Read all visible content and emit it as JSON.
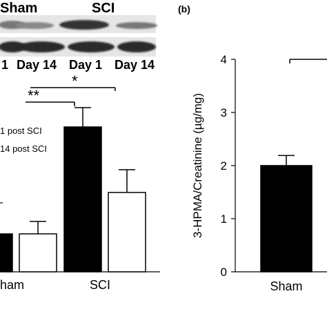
{
  "panel_a": {
    "blot": {
      "group_labels": [
        "Sham",
        "SCI"
      ],
      "lane_labels": [
        "1",
        "Day 14",
        "Day 1",
        "Day 14"
      ]
    },
    "significance": [
      "**",
      "*"
    ],
    "legend": [
      "1 post SCI",
      "14 post SCI"
    ]
  },
  "panel_b": {
    "label": "(b)"
  },
  "colors": {
    "day1": "#000000",
    "day14": "#ffffff",
    "blot_band": "#2a2a2a"
  },
  "chart_data": [
    {
      "type": "bar",
      "categories": [
        "Sham",
        "SCI"
      ],
      "series": [
        {
          "name": "1 post SCI",
          "values": [
            0.55,
            2.1
          ],
          "error": [
            null,
            0.28
          ]
        },
        {
          "name": "14 post SCI",
          "values": [
            0.55,
            1.15
          ],
          "error": [
            0.18,
            0.33
          ]
        }
      ],
      "xlabel": "",
      "ylabel": "",
      "grid": false,
      "legend": "top-left"
    },
    {
      "type": "bar",
      "categories": [
        "Sham"
      ],
      "series": [
        {
          "values": [
            2.0
          ],
          "error": [
            0.19
          ]
        }
      ],
      "yticks": [
        "0",
        "1",
        "2",
        "3",
        "4"
      ],
      "ylim": [
        0,
        4
      ],
      "ylabel": "3-HPMA/Creatinine (µg/mg)",
      "grid": false
    }
  ]
}
